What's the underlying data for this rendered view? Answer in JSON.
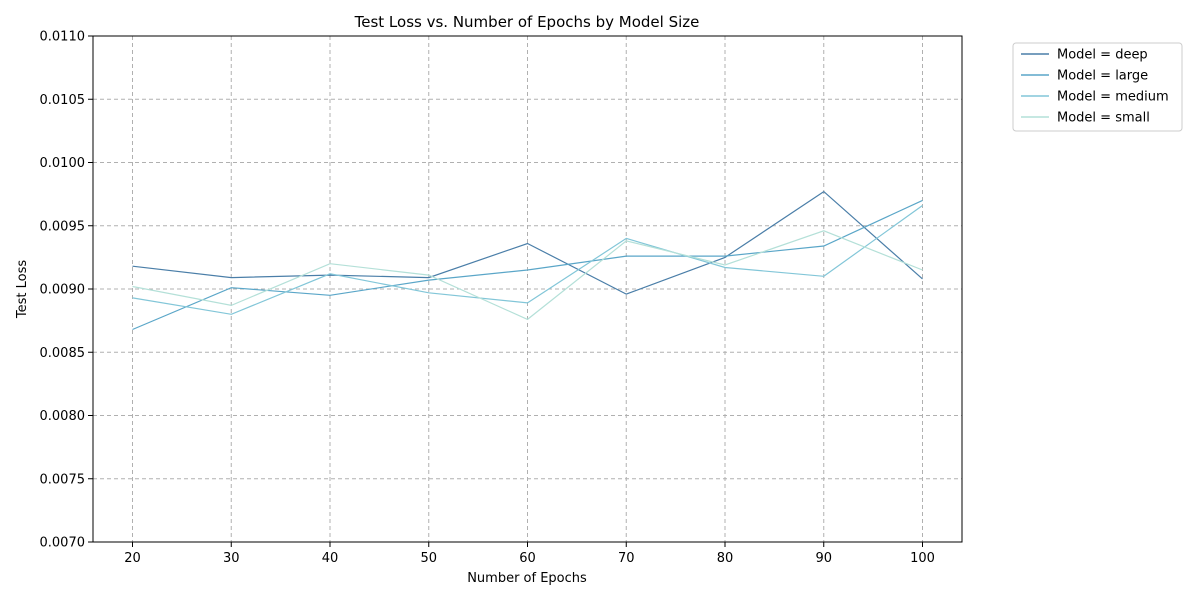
{
  "chart_data": {
    "type": "line",
    "title": "Test Loss vs. Number of Epochs by Model Size",
    "xlabel": "Number of Epochs",
    "ylabel": "Test Loss",
    "x": [
      20,
      30,
      40,
      50,
      60,
      70,
      80,
      90,
      100
    ],
    "xlim": [
      16,
      104
    ],
    "ylim": [
      0.007,
      0.011
    ],
    "xticks": [
      "20",
      "30",
      "40",
      "50",
      "60",
      "70",
      "80",
      "90",
      "100"
    ],
    "yticks": [
      "0.0070",
      "0.0075",
      "0.0080",
      "0.0085",
      "0.0090",
      "0.0095",
      "0.0100",
      "0.0105",
      "0.0110"
    ],
    "grid": true,
    "legend_position": "outside-top-right",
    "series": [
      {
        "name": "Model = deep",
        "color": "#4a7ea8",
        "values": [
          0.00918,
          0.00909,
          0.00911,
          0.00909,
          0.00936,
          0.00896,
          0.00925,
          0.00977,
          0.00908
        ]
      },
      {
        "name": "Model = large",
        "color": "#5aa6c8",
        "values": [
          0.00868,
          0.00901,
          0.00895,
          0.00907,
          0.00915,
          0.00926,
          0.00926,
          0.00934,
          0.0097
        ]
      },
      {
        "name": "Model = medium",
        "color": "#82c6d8",
        "values": [
          0.00893,
          0.0088,
          0.00912,
          0.00897,
          0.00889,
          0.0094,
          0.00917,
          0.0091,
          0.00966
        ]
      },
      {
        "name": "Model = small",
        "color": "#b4e0d8",
        "values": [
          0.00902,
          0.00887,
          0.0092,
          0.00911,
          0.00876,
          0.00938,
          0.00919,
          0.00946,
          0.00915
        ]
      }
    ]
  }
}
